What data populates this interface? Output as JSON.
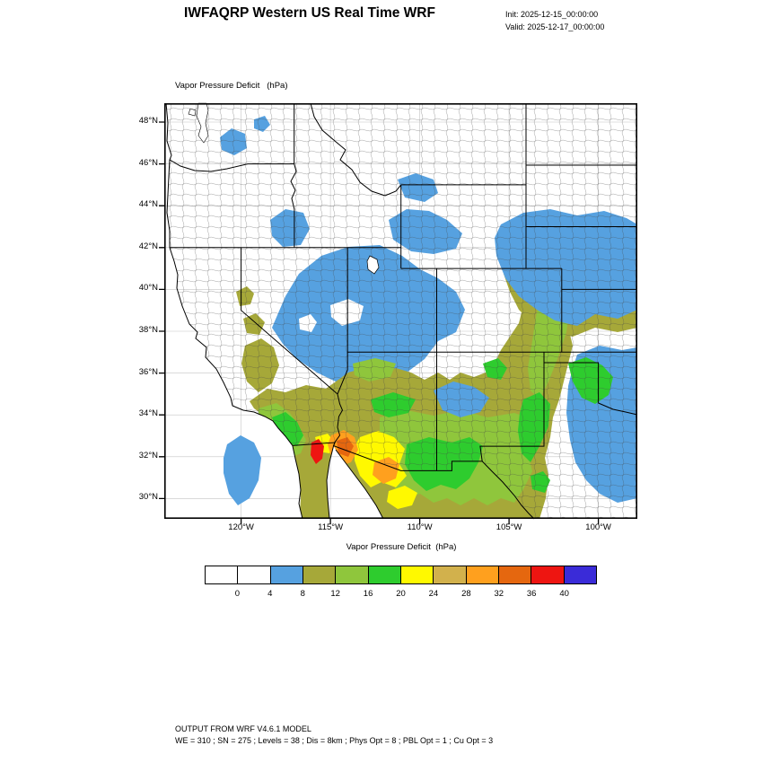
{
  "header": {
    "title": "IWFAQRP Western US Real Time WRF",
    "init_label": "Init: 2025-12-15_00:00:00",
    "valid_label": "Valid: 2025-12-17_00:00:00"
  },
  "map": {
    "field_label": "Vapor Pressure Deficit   (hPa)",
    "lat_ticks": [
      "48°N",
      "46°N",
      "44°N",
      "42°N",
      "40°N",
      "38°N",
      "36°N",
      "34°N",
      "32°N",
      "30°N"
    ],
    "lon_ticks": [
      "120°W",
      "115°W",
      "110°W",
      "105°W",
      "100°W"
    ]
  },
  "colorbar": {
    "title": "Vapor Pressure Deficit  (hPa)",
    "tick_labels": [
      "0",
      "4",
      "8",
      "12",
      "16",
      "20",
      "24",
      "28",
      "32",
      "36",
      "40"
    ],
    "colors": [
      "#FFFFFF",
      "#FFFFFF",
      "#56A1E0",
      "#A6A839",
      "#8FC63C",
      "#2ECC2E",
      "#FFF900",
      "#D2B14C",
      "#FFA01E",
      "#E5670F",
      "#EE1511",
      "#3A2BD8"
    ]
  },
  "footer": {
    "line1": "OUTPUT FROM WRF V4.6.1 MODEL",
    "line2": "WE = 310 ; SN = 275 ; Levels = 38 ; Dis = 8km ; Phys Opt = 8 ; PBL Opt = 1 ; Cu Opt = 3"
  }
}
